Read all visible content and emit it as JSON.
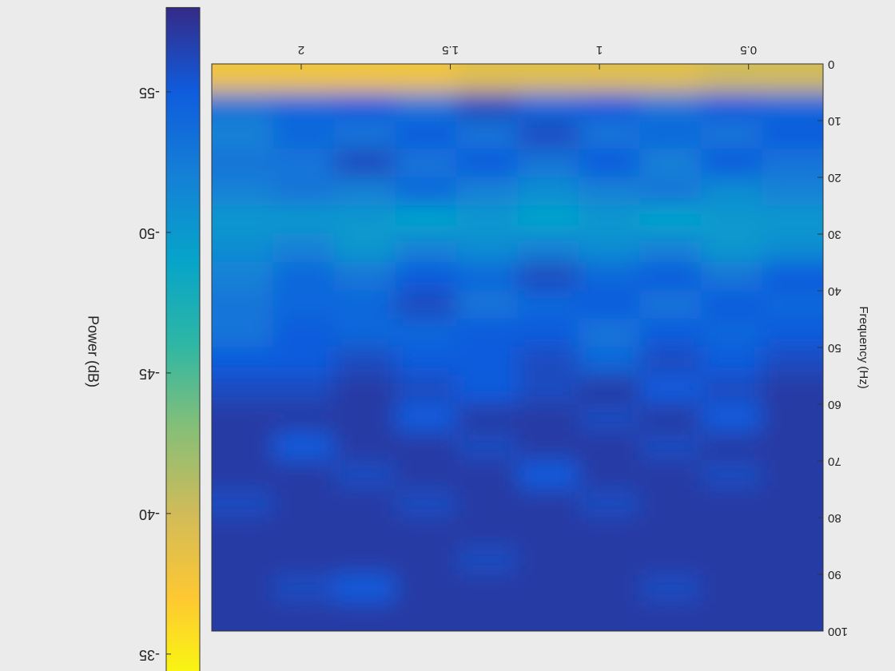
{
  "chart_data": {
    "type": "heatmap",
    "ylabel": "Frequency (Hz)",
    "colorbar_label": "Power (dB)",
    "x": [
      0.35,
      0.56,
      0.76,
      0.97,
      1.17,
      1.38,
      1.58,
      1.79,
      1.99,
      2.2
    ],
    "y": [
      2.5,
      7.5,
      12.5,
      17.5,
      22.5,
      27.5,
      32.5,
      37.5,
      42.5,
      47.5,
      52.5,
      57.5,
      62.5,
      67.5,
      72.5,
      77.5,
      82.5,
      87.5,
      92.5,
      97.5
    ],
    "z": [
      [
        -40,
        -40,
        -39,
        -39,
        -39,
        -39,
        -38,
        -38,
        -38,
        -38
      ],
      [
        -54,
        -55,
        -53,
        -55,
        -54,
        -56,
        -53,
        -55,
        -54,
        -53
      ],
      [
        -55,
        -53,
        -54,
        -53,
        -56,
        -53,
        -55,
        -53,
        -54,
        -52
      ],
      [
        -53,
        -55,
        -52,
        -55,
        -53,
        -55,
        -53,
        -56,
        -53,
        -53
      ],
      [
        -52,
        -51,
        -53,
        -52,
        -51,
        -52,
        -54,
        -52,
        -53,
        -52
      ],
      [
        -50,
        -50,
        -49,
        -50,
        -49,
        -50,
        -49,
        -50,
        -50,
        -50
      ],
      [
        -51,
        -50,
        -52,
        -51,
        -52,
        -51,
        -52,
        -50,
        -52,
        -51
      ],
      [
        -55,
        -53,
        -55,
        -54,
        -56,
        -54,
        -55,
        -53,
        -54,
        -52
      ],
      [
        -54,
        -55,
        -53,
        -55,
        -54,
        -53,
        -56,
        -54,
        -54,
        -53
      ],
      [
        -55,
        -54,
        -55,
        -53,
        -55,
        -55,
        -54,
        -54,
        -55,
        -53
      ],
      [
        -56,
        -55,
        -56,
        -54,
        -56,
        -55,
        -55,
        -56,
        -55,
        -55
      ],
      [
        -57,
        -56,
        -55,
        -57,
        -56,
        -55,
        -56,
        -57,
        -56,
        -56
      ],
      [
        -57,
        -55,
        -57,
        -56,
        -57,
        -57,
        -55,
        -57,
        -57,
        -57
      ],
      [
        -57,
        -57,
        -56,
        -57,
        -57,
        -56,
        -57,
        -57,
        -55,
        -57
      ],
      [
        -57,
        -56,
        -57,
        -57,
        -55,
        -57,
        -57,
        -56,
        -57,
        -57
      ],
      [
        -57,
        -57,
        -57,
        -56,
        -57,
        -57,
        -56,
        -57,
        -57,
        -56
      ],
      [
        -57,
        -57,
        -57,
        -57,
        -57,
        -57,
        -57,
        -57,
        -57,
        -57
      ],
      [
        -57,
        -57,
        -57,
        -57,
        -57,
        -56,
        -57,
        -57,
        -57,
        -57
      ],
      [
        -57,
        -57,
        -56,
        -57,
        -57,
        -57,
        -57,
        -55,
        -56,
        -57
      ],
      [
        -57,
        -57,
        -57,
        -57,
        -57,
        -57,
        -57,
        -57,
        -57,
        -57
      ]
    ],
    "xlim": [
      0.25,
      2.3
    ],
    "xticks": [
      0.5,
      1,
      1.5,
      2
    ],
    "ylim": [
      0,
      100
    ],
    "yticks": [
      0,
      10,
      20,
      30,
      40,
      50,
      60,
      70,
      80,
      90,
      100
    ],
    "clim": [
      -58,
      -34
    ],
    "cticks": [
      -55,
      -50,
      -45,
      -40,
      -35
    ],
    "colormap": [
      "#352a87",
      "#0f5cdd",
      "#1481d6",
      "#06a4ca",
      "#2eb7a4",
      "#87bf77",
      "#d1bb59",
      "#fec832",
      "#f9fb0e"
    ]
  }
}
